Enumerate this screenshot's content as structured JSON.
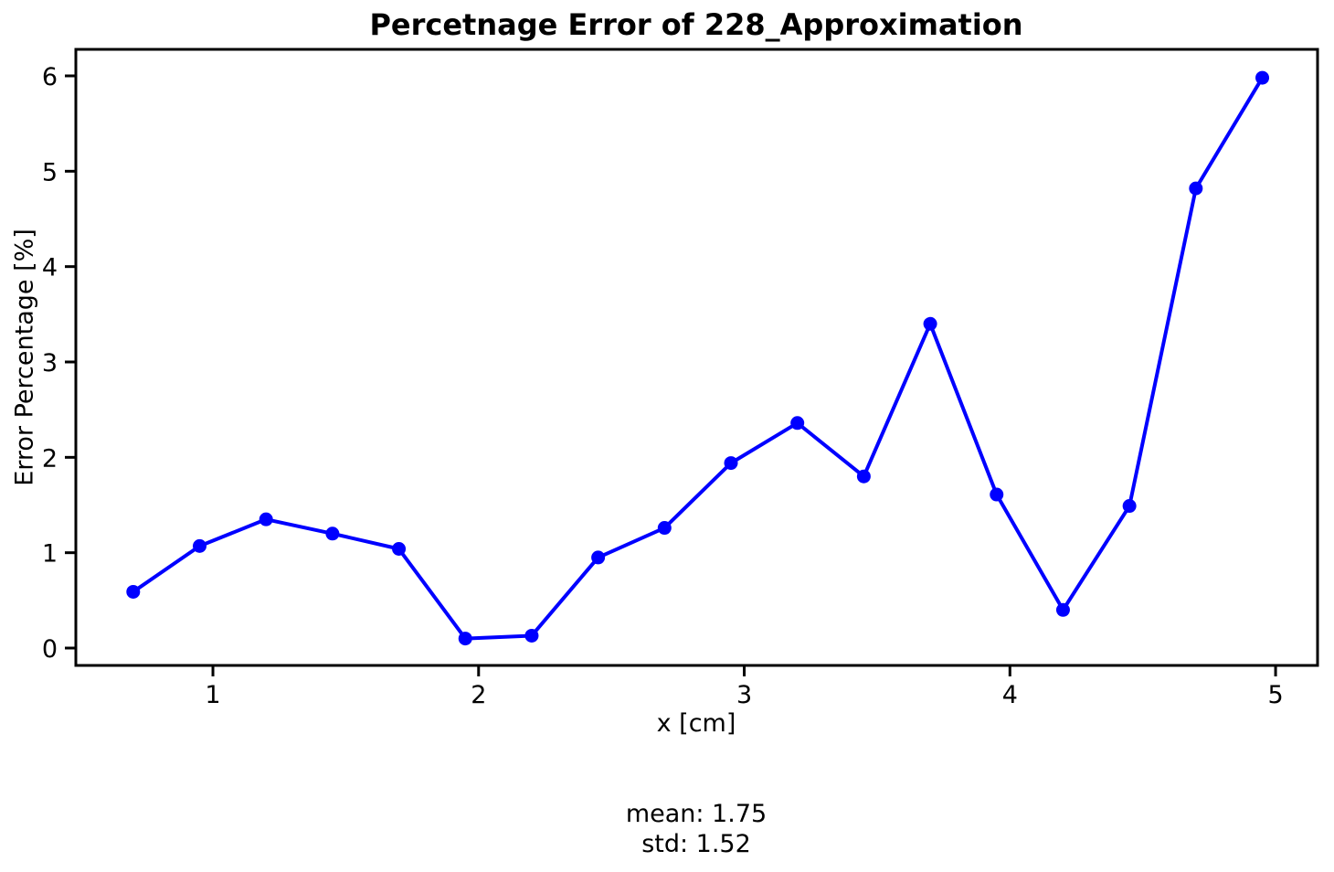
{
  "chart_data": {
    "type": "line",
    "title": "Percetnage Error of 228_Approximation",
    "xlabel": "x [cm]",
    "ylabel": "Error Percentage [%]",
    "x": [
      0.7,
      0.95,
      1.2,
      1.45,
      1.7,
      1.95,
      2.2,
      2.45,
      2.7,
      2.95,
      3.2,
      3.45,
      3.7,
      3.95,
      4.2,
      4.45,
      4.7,
      4.95
    ],
    "y": [
      0.59,
      1.07,
      1.35,
      1.2,
      1.04,
      0.1,
      0.13,
      0.95,
      1.26,
      1.94,
      2.36,
      1.8,
      3.4,
      1.61,
      0.4,
      1.49,
      4.82,
      5.98
    ],
    "xticks": [
      1,
      2,
      3,
      4,
      5
    ],
    "yticks": [
      0,
      1,
      2,
      3,
      4,
      5,
      6
    ],
    "xlim": [
      0.484,
      5.158
    ],
    "ylim": [
      -0.182,
      6.278
    ],
    "grid": false,
    "legend": null,
    "line_color": "#0000ff",
    "marker": "circle",
    "axis_color": "#000000",
    "annotation": {
      "lines": [
        "mean: 1.75",
        "std: 1.52"
      ]
    }
  }
}
